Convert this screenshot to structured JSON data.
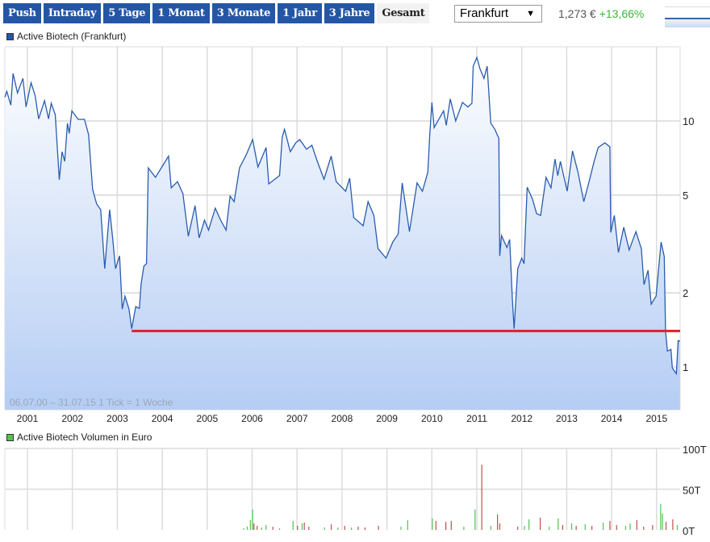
{
  "toolbar": {
    "buttons": [
      "Push",
      "Intraday",
      "5 Tage",
      "1 Monat",
      "3 Monate",
      "1 Jahr",
      "3 Jahre",
      "Gesamt"
    ],
    "active": "Gesamt",
    "exchange_select": "Frankfurt",
    "price": "1,273 €",
    "change": "+13,66%",
    "change_color": "#3cb43c"
  },
  "price_legend": "Active Biotech (Frankfurt)",
  "volume_legend": "Active Biotech Volumen in Euro",
  "range_info": "06.07.00 – 31.07.15   1 Tick = 1 Woche",
  "colors": {
    "line": "#2a5cb0",
    "fill_bottom": "#b5cdf4",
    "support_line": "#e0202a",
    "volume_up": "#55c055",
    "volume_down": "#c0504d",
    "legend_price": "#2456a6",
    "legend_volume": "#55c055"
  },
  "chart_data": [
    {
      "type": "area",
      "scale": "log",
      "x_tick_labels": [
        "2001",
        "2002",
        "2003",
        "2004",
        "2005",
        "2006",
        "2007",
        "2008",
        "2009",
        "2010",
        "2011",
        "2012",
        "2013",
        "2014",
        "2015"
      ],
      "y_tick_labels": [
        "10",
        "5",
        "2",
        "1"
      ],
      "y_ticks": [
        10,
        5,
        2,
        1
      ],
      "xlim": [
        2000.5,
        2015.52
      ],
      "grid": true,
      "support_level": 1.4,
      "support_from": 2003.32,
      "points": [
        [
          2000.5,
          12.5
        ],
        [
          2000.54,
          13.2
        ],
        [
          2000.63,
          11.6
        ],
        [
          2000.68,
          15.6
        ],
        [
          2000.78,
          13.0
        ],
        [
          2000.9,
          14.9
        ],
        [
          2000.97,
          11.4
        ],
        [
          2001.08,
          14.3
        ],
        [
          2001.17,
          12.7
        ],
        [
          2001.25,
          10.2
        ],
        [
          2001.38,
          12.1
        ],
        [
          2001.47,
          10.2
        ],
        [
          2001.53,
          11.8
        ],
        [
          2001.62,
          10.6
        ],
        [
          2001.71,
          5.77
        ],
        [
          2001.77,
          7.5
        ],
        [
          2001.83,
          6.85
        ],
        [
          2001.89,
          9.8
        ],
        [
          2001.93,
          8.9
        ],
        [
          2001.99,
          11.0
        ],
        [
          2002.13,
          10.15
        ],
        [
          2002.27,
          10.15
        ],
        [
          2002.36,
          8.8
        ],
        [
          2002.45,
          5.27
        ],
        [
          2002.54,
          4.6
        ],
        [
          2002.63,
          4.36
        ],
        [
          2002.72,
          2.51
        ],
        [
          2002.83,
          4.36
        ],
        [
          2002.9,
          3.3
        ],
        [
          2002.96,
          2.51
        ],
        [
          2003.05,
          2.83
        ],
        [
          2003.11,
          1.72
        ],
        [
          2003.17,
          1.94
        ],
        [
          2003.26,
          1.72
        ],
        [
          2003.32,
          1.43
        ],
        [
          2003.41,
          1.76
        ],
        [
          2003.49,
          1.73
        ],
        [
          2003.53,
          2.18
        ],
        [
          2003.59,
          2.57
        ],
        [
          2003.65,
          2.63
        ],
        [
          2003.69,
          6.45
        ],
        [
          2003.85,
          5.9
        ],
        [
          2003.98,
          6.45
        ],
        [
          2004.14,
          7.2
        ],
        [
          2004.2,
          5.35
        ],
        [
          2004.34,
          5.67
        ],
        [
          2004.46,
          5.07
        ],
        [
          2004.58,
          3.4
        ],
        [
          2004.73,
          4.53
        ],
        [
          2004.82,
          3.35
        ],
        [
          2004.94,
          3.95
        ],
        [
          2005.03,
          3.6
        ],
        [
          2005.18,
          4.42
        ],
        [
          2005.3,
          3.95
        ],
        [
          2005.42,
          3.6
        ],
        [
          2005.51,
          4.95
        ],
        [
          2005.6,
          4.7
        ],
        [
          2005.72,
          6.45
        ],
        [
          2005.87,
          7.3
        ],
        [
          2006.01,
          8.4
        ],
        [
          2006.13,
          6.5
        ],
        [
          2006.31,
          7.8
        ],
        [
          2006.37,
          5.55
        ],
        [
          2006.61,
          6.0
        ],
        [
          2006.67,
          8.6
        ],
        [
          2006.72,
          9.25
        ],
        [
          2006.85,
          7.5
        ],
        [
          2006.97,
          8.15
        ],
        [
          2007.06,
          8.4
        ],
        [
          2007.21,
          7.68
        ],
        [
          2007.33,
          7.97
        ],
        [
          2007.45,
          6.85
        ],
        [
          2007.6,
          5.8
        ],
        [
          2007.76,
          7.2
        ],
        [
          2007.87,
          5.67
        ],
        [
          2008.08,
          5.18
        ],
        [
          2008.17,
          5.85
        ],
        [
          2008.26,
          4.05
        ],
        [
          2008.47,
          3.75
        ],
        [
          2008.58,
          4.7
        ],
        [
          2008.71,
          4.13
        ],
        [
          2008.8,
          3.03
        ],
        [
          2008.98,
          2.77
        ],
        [
          2009.13,
          3.22
        ],
        [
          2009.25,
          3.47
        ],
        [
          2009.34,
          5.6
        ],
        [
          2009.5,
          3.55
        ],
        [
          2009.67,
          5.6
        ],
        [
          2009.79,
          5.18
        ],
        [
          2009.91,
          6.2
        ],
        [
          2009.95,
          8.6
        ],
        [
          2010.0,
          11.9
        ],
        [
          2010.05,
          9.4
        ],
        [
          2010.26,
          11.0
        ],
        [
          2010.32,
          9.6
        ],
        [
          2010.41,
          12.3
        ],
        [
          2010.53,
          10.0
        ],
        [
          2010.68,
          11.9
        ],
        [
          2010.8,
          11.4
        ],
        [
          2010.89,
          11.8
        ],
        [
          2010.92,
          16.7
        ],
        [
          2011.0,
          18.1
        ],
        [
          2011.07,
          16.3
        ],
        [
          2011.16,
          14.9
        ],
        [
          2011.23,
          16.7
        ],
        [
          2011.31,
          9.8
        ],
        [
          2011.4,
          9.25
        ],
        [
          2011.49,
          8.5
        ],
        [
          2011.51,
          2.83
        ],
        [
          2011.55,
          3.42
        ],
        [
          2011.67,
          3.06
        ],
        [
          2011.73,
          3.3
        ],
        [
          2011.79,
          1.9
        ],
        [
          2011.83,
          1.43
        ],
        [
          2011.91,
          2.51
        ],
        [
          2012.0,
          2.77
        ],
        [
          2012.05,
          2.63
        ],
        [
          2012.12,
          5.38
        ],
        [
          2012.24,
          4.8
        ],
        [
          2012.33,
          4.2
        ],
        [
          2012.42,
          4.13
        ],
        [
          2012.54,
          5.9
        ],
        [
          2012.65,
          5.35
        ],
        [
          2012.74,
          7.0
        ],
        [
          2012.8,
          6.0
        ],
        [
          2012.86,
          6.85
        ],
        [
          2013.01,
          5.18
        ],
        [
          2013.13,
          7.55
        ],
        [
          2013.25,
          6.2
        ],
        [
          2013.38,
          4.7
        ],
        [
          2013.49,
          5.6
        ],
        [
          2013.61,
          6.85
        ],
        [
          2013.7,
          7.8
        ],
        [
          2013.85,
          8.15
        ],
        [
          2013.96,
          7.85
        ],
        [
          2013.98,
          3.52
        ],
        [
          2014.06,
          4.13
        ],
        [
          2014.15,
          2.92
        ],
        [
          2014.27,
          3.7
        ],
        [
          2014.39,
          2.99
        ],
        [
          2014.54,
          3.55
        ],
        [
          2014.66,
          3.03
        ],
        [
          2014.72,
          2.16
        ],
        [
          2014.81,
          2.47
        ],
        [
          2014.88,
          1.8
        ],
        [
          2014.99,
          1.94
        ],
        [
          2015.1,
          3.22
        ],
        [
          2015.17,
          2.81
        ],
        [
          2015.2,
          1.4
        ],
        [
          2015.24,
          1.16
        ],
        [
          2015.32,
          1.18
        ],
        [
          2015.35,
          0.99
        ],
        [
          2015.44,
          0.94
        ],
        [
          2015.48,
          1.28
        ],
        [
          2015.52,
          1.273
        ]
      ]
    },
    {
      "type": "bar",
      "y_tick_labels": [
        "100T",
        "50T",
        "0T"
      ],
      "ylim": [
        0,
        100
      ],
      "unit": "T",
      "bars": [
        [
          2005.8,
          2,
          "up"
        ],
        [
          2005.88,
          4,
          "up"
        ],
        [
          2005.95,
          12,
          "up"
        ],
        [
          2006.0,
          25,
          "up"
        ],
        [
          2006.03,
          8,
          "down"
        ],
        [
          2006.1,
          5,
          "down"
        ],
        [
          2006.2,
          3,
          "up"
        ],
        [
          2006.3,
          6,
          "up"
        ],
        [
          2006.45,
          4,
          "down"
        ],
        [
          2006.6,
          2,
          "up"
        ],
        [
          2006.9,
          11,
          "up"
        ],
        [
          2007.0,
          5,
          "down"
        ],
        [
          2007.1,
          8,
          "up"
        ],
        [
          2007.15,
          9,
          "down"
        ],
        [
          2007.25,
          4,
          "down"
        ],
        [
          2007.6,
          3,
          "up"
        ],
        [
          2007.75,
          7,
          "down"
        ],
        [
          2007.9,
          3,
          "up"
        ],
        [
          2008.05,
          5,
          "down"
        ],
        [
          2008.2,
          3,
          "up"
        ],
        [
          2008.35,
          4,
          "down"
        ],
        [
          2008.5,
          3,
          "down"
        ],
        [
          2008.8,
          5,
          "down"
        ],
        [
          2009.3,
          4,
          "up"
        ],
        [
          2009.45,
          12,
          "up"
        ],
        [
          2010.0,
          14,
          "up"
        ],
        [
          2010.08,
          11,
          "down"
        ],
        [
          2010.3,
          10,
          "down"
        ],
        [
          2010.42,
          11,
          "down"
        ],
        [
          2010.7,
          4,
          "up"
        ],
        [
          2010.95,
          25,
          "up"
        ],
        [
          2011.1,
          80,
          "down"
        ],
        [
          2011.3,
          5,
          "up"
        ],
        [
          2011.45,
          19,
          "down"
        ],
        [
          2011.5,
          8,
          "down"
        ],
        [
          2011.9,
          4,
          "down"
        ],
        [
          2012.05,
          5,
          "up"
        ],
        [
          2012.15,
          13,
          "up"
        ],
        [
          2012.4,
          15,
          "down"
        ],
        [
          2012.6,
          4,
          "up"
        ],
        [
          2012.8,
          14,
          "up"
        ],
        [
          2012.9,
          6,
          "down"
        ],
        [
          2013.1,
          8,
          "up"
        ],
        [
          2013.2,
          5,
          "down"
        ],
        [
          2013.4,
          7,
          "up"
        ],
        [
          2013.55,
          5,
          "down"
        ],
        [
          2013.8,
          9,
          "up"
        ],
        [
          2013.95,
          11,
          "down"
        ],
        [
          2014.1,
          6,
          "down"
        ],
        [
          2014.3,
          5,
          "up"
        ],
        [
          2014.4,
          8,
          "up"
        ],
        [
          2014.55,
          12,
          "down"
        ],
        [
          2014.7,
          4,
          "down"
        ],
        [
          2014.9,
          6,
          "down"
        ],
        [
          2015.08,
          32,
          "up"
        ],
        [
          2015.12,
          20,
          "up"
        ],
        [
          2015.2,
          10,
          "down"
        ],
        [
          2015.35,
          13,
          "down"
        ],
        [
          2015.45,
          6,
          "up"
        ]
      ]
    }
  ]
}
